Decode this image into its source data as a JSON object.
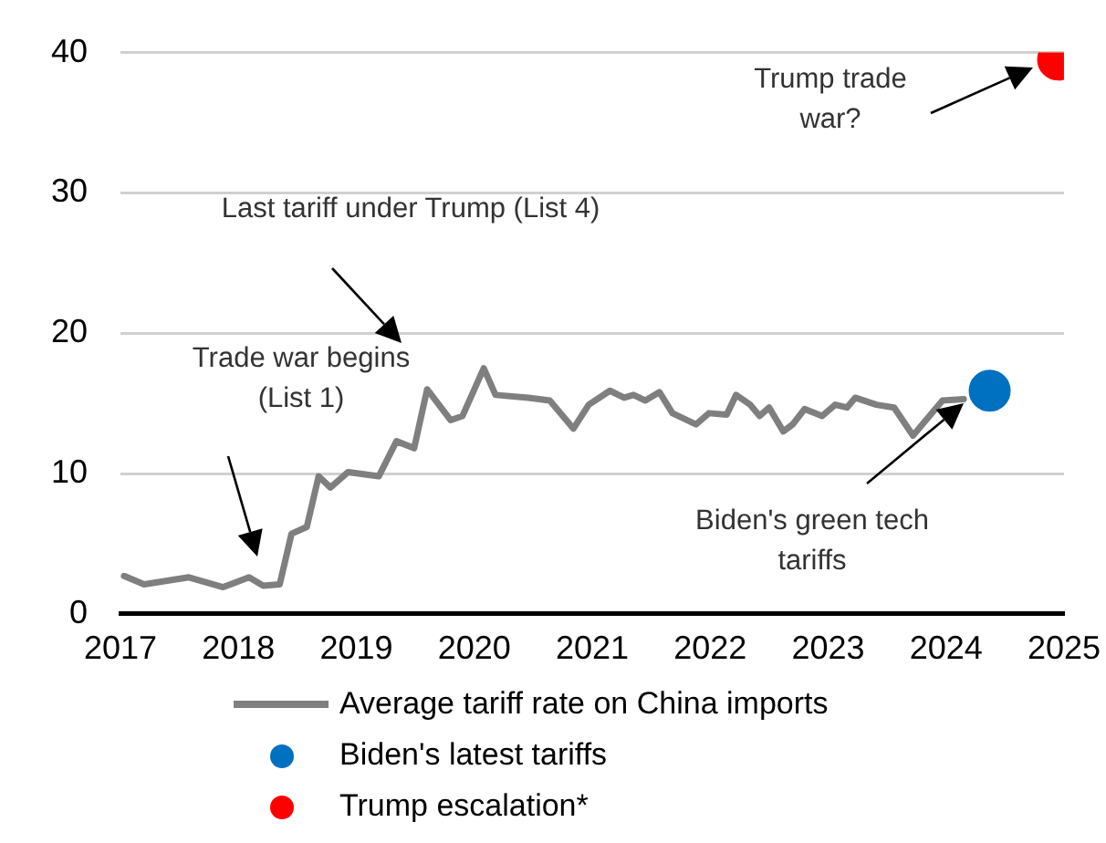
{
  "chart_data": {
    "type": "line",
    "xlim": [
      2017,
      2025
    ],
    "xticks": [
      2017,
      2018,
      2019,
      2020,
      2021,
      2022,
      2023,
      2024,
      2025
    ],
    "ylim": [
      0,
      40
    ],
    "yticks": [
      0,
      10,
      20,
      30,
      40
    ],
    "grid": "y",
    "legend": "bottom",
    "marker": "none",
    "line_style": "solid",
    "series": [
      {
        "name": "Average tariff rate on China imports",
        "color": "#7f7f7f",
        "x": [
          2017.03,
          2017.2,
          2017.58,
          2017.87,
          2018.09,
          2018.21,
          2018.35,
          2018.45,
          2018.58,
          2018.68,
          2018.78,
          2018.93,
          2019.19,
          2019.34,
          2019.49,
          2019.6,
          2019.8,
          2019.9,
          2020.08,
          2020.18,
          2020.46,
          2020.64,
          2020.84,
          2020.97,
          2021.15,
          2021.27,
          2021.35,
          2021.45,
          2021.57,
          2021.68,
          2021.88,
          2021.99,
          2022.14,
          2022.22,
          2022.34,
          2022.42,
          2022.5,
          2022.62,
          2022.7,
          2022.8,
          2022.95,
          2023.06,
          2023.16,
          2023.23,
          2023.41,
          2023.56,
          2023.72,
          2023.82,
          2023.97,
          2024.15
        ],
        "values": [
          2.7,
          2.1,
          2.6,
          1.9,
          2.6,
          2.0,
          2.1,
          5.7,
          6.2,
          9.8,
          9.0,
          10.1,
          9.8,
          12.3,
          11.8,
          16.0,
          13.8,
          14.1,
          17.5,
          15.6,
          15.4,
          15.2,
          13.2,
          14.9,
          15.9,
          15.4,
          15.6,
          15.2,
          15.8,
          14.3,
          13.5,
          14.3,
          14.2,
          15.6,
          14.9,
          14.1,
          14.7,
          13.0,
          13.5,
          14.6,
          14.1,
          14.9,
          14.7,
          15.4,
          14.9,
          14.7,
          12.7,
          13.7,
          15.2,
          15.3
        ]
      },
      {
        "name": "Biden's latest tariffs",
        "type": "scatter",
        "marker": "circle",
        "color": "#0070c0",
        "x": [
          2024.37
        ],
        "values": [
          15.9
        ]
      },
      {
        "name": "Trump escalation*",
        "type": "scatter",
        "marker": "circle",
        "color": "#ff0000",
        "x": [
          2024.95
        ],
        "values": [
          39.5
        ]
      }
    ],
    "annotations": [
      "Trade war begins\n(List 1)",
      "Last tariff under Trump (List 4)",
      "Biden's green tech\ntariffs",
      "Trump trade\nwar?"
    ]
  }
}
